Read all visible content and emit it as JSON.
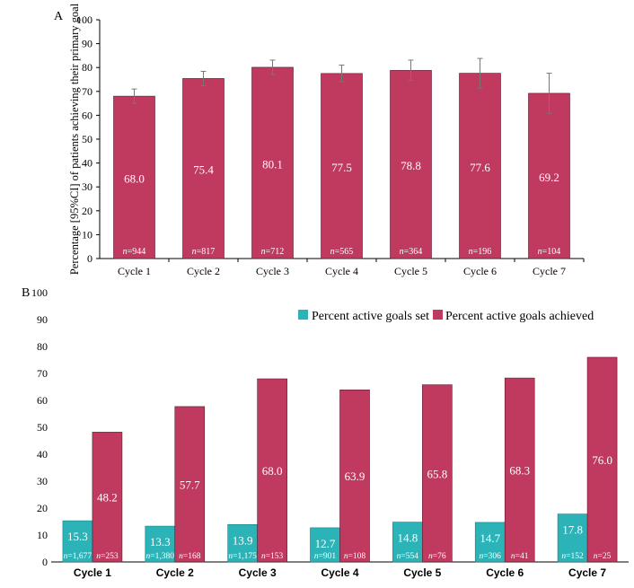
{
  "chart_data": [
    {
      "panel": "A",
      "type": "bar",
      "ylabel": "Percentage [95%CI] of patients achieving their primary goal",
      "ylim": [
        0,
        100
      ],
      "yticks": [
        0,
        10,
        20,
        30,
        40,
        50,
        60,
        70,
        80,
        90,
        100
      ],
      "categories": [
        "Cycle 1",
        "Cycle 2",
        "Cycle 3",
        "Cycle 4",
        "Cycle 5",
        "Cycle 6",
        "Cycle 7"
      ],
      "values": [
        68.0,
        75.4,
        80.1,
        77.5,
        78.8,
        77.6,
        69.2
      ],
      "value_labels": [
        "68.0",
        "75.4",
        "80.1",
        "77.5",
        "78.8",
        "77.6",
        "69.2"
      ],
      "ci_low": [
        65.0,
        72.4,
        77.1,
        74.0,
        74.5,
        71.4,
        60.8
      ],
      "ci_high": [
        71.0,
        78.4,
        83.1,
        81.0,
        83.1,
        83.8,
        77.6
      ],
      "n_prefix": "n=",
      "n_values": [
        "944",
        "817",
        "712",
        "565",
        "364",
        "196",
        "104"
      ],
      "grid": false,
      "color": "#C0395F"
    },
    {
      "panel": "B",
      "type": "bar",
      "ylim": [
        0,
        100
      ],
      "yticks": [
        0,
        10,
        20,
        30,
        40,
        50,
        60,
        70,
        80,
        90,
        100
      ],
      "categories": [
        "Cycle 1",
        "Cycle 2",
        "Cycle 3",
        "Cycle 4",
        "Cycle 5",
        "Cycle 6",
        "Cycle 7"
      ],
      "series": [
        {
          "name": "Percent active goals set",
          "color": "#2BB3B8",
          "values": [
            15.3,
            13.3,
            13.9,
            12.7,
            14.8,
            14.7,
            17.8
          ],
          "value_labels": [
            "15.3",
            "13.3",
            "13.9",
            "12.7",
            "14.8",
            "14.7",
            "17.8"
          ],
          "n_values": [
            "1,677",
            "1,380",
            "1,175",
            "901",
            "554",
            "306",
            "152"
          ]
        },
        {
          "name": "Percent active goals achieved",
          "color": "#C0395F",
          "values": [
            48.2,
            57.7,
            68.0,
            63.9,
            65.8,
            68.3,
            76.0
          ],
          "value_labels": [
            "48.2",
            "57.7",
            "68.0",
            "63.9",
            "65.8",
            "68.3",
            "76.0"
          ],
          "n_values": [
            "253",
            "168",
            "153",
            "108",
            "76",
            "41",
            "25"
          ]
        }
      ],
      "n_prefix": "n=",
      "legend": "top-right",
      "grid": false
    }
  ]
}
